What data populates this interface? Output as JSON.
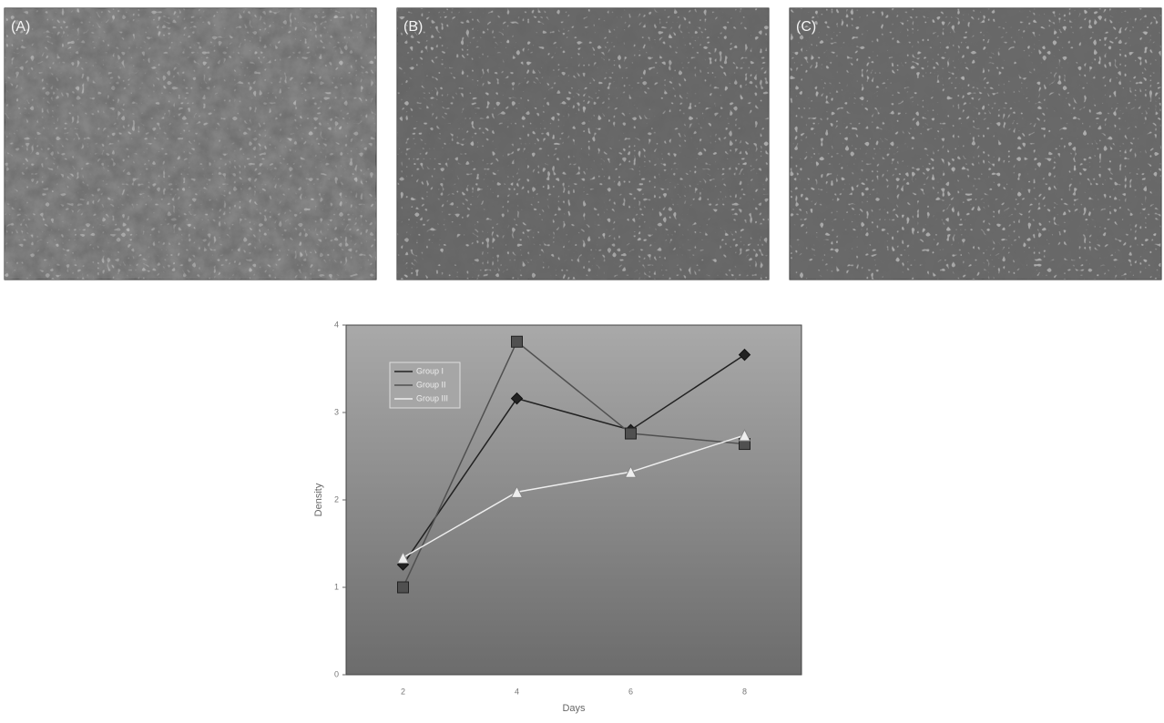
{
  "panels": [
    {
      "label": "(A)"
    },
    {
      "label": "(B)"
    },
    {
      "label": "(C)"
    }
  ],
  "chart_data": {
    "type": "line",
    "categories": [
      "2",
      "4",
      "6",
      "8"
    ],
    "x_label": "Days",
    "y_label": "Density",
    "ylim": [
      0,
      4
    ],
    "yticks": [
      0,
      1,
      2,
      3,
      4
    ],
    "legend": "upper left",
    "series": [
      {
        "name": "Group I",
        "color": "#222222",
        "marker": "diamond",
        "values": [
          1.26,
          3.16,
          2.8,
          3.66
        ]
      },
      {
        "name": "Group II",
        "color": "#505050",
        "marker": "square",
        "values": [
          1.0,
          3.81,
          2.76,
          2.64
        ]
      },
      {
        "name": "Group III",
        "color": "#eeeeee",
        "marker": "triangle",
        "values": [
          1.34,
          2.09,
          2.32,
          2.74
        ]
      }
    ]
  }
}
